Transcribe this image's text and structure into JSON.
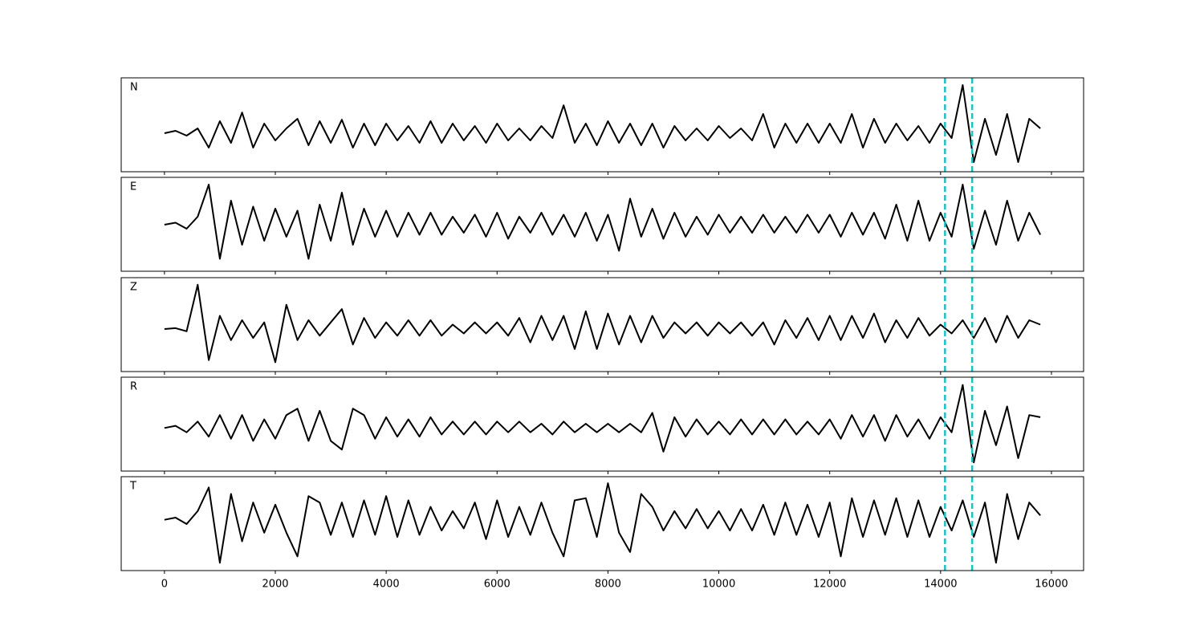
{
  "chart_data": [
    {
      "type": "line",
      "label": "N",
      "xlim": [
        -780,
        16580
      ],
      "ylim": [
        -0.8,
        1.15
      ],
      "xticks": [
        0,
        2000,
        4000,
        6000,
        8000,
        10000,
        12000,
        14000,
        16000
      ],
      "markers": [
        14080,
        14570
      ],
      "marker_color": "#17c3c3",
      "x": [
        0,
        200,
        400,
        600,
        800,
        1000,
        1200,
        1400,
        1600,
        1800,
        2000,
        2200,
        2400,
        2600,
        2800,
        3000,
        3200,
        3400,
        3600,
        3800,
        4000,
        4200,
        4400,
        4600,
        4800,
        5000,
        5200,
        5400,
        5600,
        5800,
        6000,
        6200,
        6400,
        6600,
        6800,
        7000,
        7200,
        7400,
        7600,
        7800,
        8000,
        8200,
        8400,
        8600,
        8800,
        9000,
        9200,
        9400,
        9600,
        9800,
        10000,
        10200,
        10400,
        10600,
        10800,
        11000,
        11200,
        11400,
        11600,
        11800,
        12000,
        12200,
        12400,
        12600,
        12800,
        13000,
        13200,
        13400,
        13600,
        13800,
        14000,
        14200,
        14400,
        14600,
        14800,
        15000,
        15200,
        15400,
        15600,
        15800
      ],
      "series": [
        {
          "color": "#000000",
          "values": [
            0,
            0.05,
            -0.05,
            0.1,
            -0.3,
            0.25,
            -0.2,
            0.43,
            -0.3,
            0.2,
            -0.15,
            0.1,
            0.3,
            -0.25,
            0.25,
            -0.2,
            0.28,
            -0.3,
            0.2,
            -0.25,
            0.2,
            -0.15,
            0.15,
            -0.2,
            0.25,
            -0.2,
            0.2,
            -0.15,
            0.15,
            -0.2,
            0.2,
            -0.15,
            0.1,
            -0.15,
            0.15,
            -0.1,
            0.58,
            -0.2,
            0.2,
            -0.25,
            0.25,
            -0.2,
            0.2,
            -0.25,
            0.2,
            -0.3,
            0.15,
            -0.15,
            0.1,
            -0.15,
            0.15,
            -0.1,
            0.1,
            -0.15,
            0.4,
            -0.3,
            0.2,
            -0.2,
            0.2,
            -0.2,
            0.2,
            -0.2,
            0.4,
            -0.3,
            0.3,
            -0.2,
            0.2,
            -0.15,
            0.15,
            -0.2,
            0.2,
            -0.1,
            1.0,
            -0.6,
            0.3,
            -0.45,
            0.4,
            -0.6,
            0.3,
            0.1
          ]
        }
      ]
    },
    {
      "type": "line",
      "label": "E",
      "xlim": [
        -780,
        16580
      ],
      "ylim": [
        -1.16,
        1.18
      ],
      "xticks": [
        0,
        2000,
        4000,
        6000,
        8000,
        10000,
        12000,
        14000,
        16000
      ],
      "markers": [
        14080,
        14570
      ],
      "marker_color": "#17c3c3",
      "x": [
        0,
        200,
        400,
        600,
        800,
        1000,
        1200,
        1400,
        1600,
        1800,
        2000,
        2200,
        2400,
        2600,
        2800,
        3000,
        3200,
        3400,
        3600,
        3800,
        4000,
        4200,
        4400,
        4600,
        4800,
        5000,
        5200,
        5400,
        5600,
        5800,
        6000,
        6200,
        6400,
        6600,
        6800,
        7000,
        7200,
        7400,
        7600,
        7800,
        8000,
        8200,
        8400,
        8600,
        8800,
        9000,
        9200,
        9400,
        9600,
        9800,
        10000,
        10200,
        10400,
        10600,
        10800,
        11000,
        11200,
        11400,
        11600,
        11800,
        12000,
        12200,
        12400,
        12600,
        12800,
        13000,
        13200,
        13400,
        13600,
        13800,
        14000,
        14200,
        14400,
        14600,
        14800,
        15000,
        15200,
        15400,
        15600,
        15800
      ],
      "series": [
        {
          "color": "#000000",
          "values": [
            0,
            0.05,
            -0.1,
            0.2,
            1.0,
            -0.85,
            0.6,
            -0.5,
            0.45,
            -0.4,
            0.4,
            -0.3,
            0.35,
            -0.85,
            0.5,
            -0.4,
            0.8,
            -0.5,
            0.4,
            -0.3,
            0.35,
            -0.3,
            0.3,
            -0.25,
            0.3,
            -0.25,
            0.2,
            -0.2,
            0.25,
            -0.3,
            0.3,
            -0.35,
            0.2,
            -0.2,
            0.3,
            -0.25,
            0.25,
            -0.3,
            0.3,
            -0.4,
            0.25,
            -0.65,
            0.65,
            -0.3,
            0.4,
            -0.35,
            0.3,
            -0.3,
            0.2,
            -0.25,
            0.25,
            -0.2,
            0.2,
            -0.2,
            0.25,
            -0.2,
            0.2,
            -0.2,
            0.25,
            -0.2,
            0.25,
            -0.3,
            0.3,
            -0.25,
            0.3,
            -0.35,
            0.5,
            -0.4,
            0.6,
            -0.4,
            0.3,
            -0.3,
            1.0,
            -0.6,
            0.35,
            -0.5,
            0.6,
            -0.4,
            0.3,
            -0.25
          ]
        }
      ]
    },
    {
      "type": "line",
      "label": "Z",
      "xlim": [
        -780,
        16580
      ],
      "ylim": [
        -0.96,
        1.16
      ],
      "xticks": [
        0,
        2000,
        4000,
        6000,
        8000,
        10000,
        12000,
        14000,
        16000
      ],
      "markers": [
        14080,
        14570
      ],
      "marker_color": "#17c3c3",
      "x": [
        0,
        200,
        400,
        600,
        800,
        1000,
        1200,
        1400,
        1600,
        1800,
        2000,
        2200,
        2400,
        2600,
        2800,
        3000,
        3200,
        3400,
        3600,
        3800,
        4000,
        4200,
        4400,
        4600,
        4800,
        5000,
        5200,
        5400,
        5600,
        5800,
        6000,
        6200,
        6400,
        6600,
        6800,
        7000,
        7200,
        7400,
        7600,
        7800,
        8000,
        8200,
        8400,
        8600,
        8800,
        9000,
        9200,
        9400,
        9600,
        9800,
        10000,
        10200,
        10400,
        10600,
        10800,
        11000,
        11200,
        11400,
        11600,
        11800,
        12000,
        12200,
        12400,
        12600,
        12800,
        13000,
        13200,
        13400,
        13600,
        13800,
        14000,
        14200,
        14400,
        14600,
        14800,
        15000,
        15200,
        15400,
        15600,
        15800
      ],
      "series": [
        {
          "color": "#000000",
          "values": [
            0,
            0.02,
            -0.05,
            1.0,
            -0.7,
            0.3,
            -0.25,
            0.2,
            -0.2,
            0.15,
            -0.75,
            0.55,
            -0.25,
            0.2,
            -0.15,
            0.15,
            0.45,
            -0.35,
            0.25,
            -0.2,
            0.15,
            -0.15,
            0.2,
            -0.15,
            0.2,
            -0.15,
            0.1,
            -0.1,
            0.15,
            -0.1,
            0.15,
            -0.15,
            0.25,
            -0.3,
            0.3,
            -0.25,
            0.3,
            -0.45,
            0.4,
            -0.45,
            0.35,
            -0.35,
            0.3,
            -0.3,
            0.3,
            -0.2,
            0.15,
            -0.1,
            0.15,
            -0.15,
            0.15,
            -0.1,
            0.15,
            -0.15,
            0.15,
            -0.35,
            0.2,
            -0.2,
            0.25,
            -0.25,
            0.3,
            -0.25,
            0.3,
            -0.2,
            0.35,
            -0.3,
            0.2,
            -0.2,
            0.25,
            -0.15,
            0.1,
            -0.1,
            0.2,
            -0.2,
            0.25,
            -0.3,
            0.3,
            -0.2,
            0.2,
            0.1
          ]
        }
      ]
    },
    {
      "type": "line",
      "label": "R",
      "xlim": [
        -780,
        16580
      ],
      "ylim": [
        -1.0,
        1.18
      ],
      "xticks": [
        0,
        2000,
        4000,
        6000,
        8000,
        10000,
        12000,
        14000,
        16000
      ],
      "markers": [
        14080,
        14570
      ],
      "marker_color": "#17c3c3",
      "x": [
        0,
        200,
        400,
        600,
        800,
        1000,
        1200,
        1400,
        1600,
        1800,
        2000,
        2200,
        2400,
        2600,
        2800,
        3000,
        3200,
        3400,
        3600,
        3800,
        4000,
        4200,
        4400,
        4600,
        4800,
        5000,
        5200,
        5400,
        5600,
        5800,
        6000,
        6200,
        6400,
        6600,
        6800,
        7000,
        7200,
        7400,
        7600,
        7800,
        8000,
        8200,
        8400,
        8600,
        8800,
        9000,
        9200,
        9400,
        9600,
        9800,
        10000,
        10200,
        10400,
        10600,
        10800,
        11000,
        11200,
        11400,
        11600,
        11800,
        12000,
        12200,
        12400,
        12600,
        12800,
        13000,
        13200,
        13400,
        13600,
        13800,
        14000,
        14200,
        14400,
        14600,
        14800,
        15000,
        15200,
        15400,
        15600,
        15800
      ],
      "series": [
        {
          "color": "#000000",
          "values": [
            0,
            0.05,
            -0.1,
            0.15,
            -0.2,
            0.3,
            -0.25,
            0.3,
            -0.3,
            0.2,
            -0.25,
            0.3,
            0.45,
            -0.3,
            0.4,
            -0.3,
            -0.5,
            0.45,
            0.3,
            -0.25,
            0.25,
            -0.2,
            0.2,
            -0.2,
            0.25,
            -0.15,
            0.15,
            -0.15,
            0.15,
            -0.15,
            0.15,
            -0.1,
            0.15,
            -0.1,
            0.1,
            -0.15,
            0.15,
            -0.1,
            0.1,
            -0.1,
            0.1,
            -0.1,
            0.1,
            -0.1,
            0.35,
            -0.55,
            0.25,
            -0.2,
            0.2,
            -0.15,
            0.15,
            -0.15,
            0.2,
            -0.15,
            0.2,
            -0.15,
            0.2,
            -0.15,
            0.15,
            -0.15,
            0.2,
            -0.25,
            0.3,
            -0.2,
            0.3,
            -0.3,
            0.3,
            -0.2,
            0.2,
            -0.25,
            0.25,
            -0.1,
            1.0,
            -0.8,
            0.4,
            -0.4,
            0.5,
            -0.7,
            0.3,
            0.25
          ]
        }
      ]
    },
    {
      "type": "line",
      "label": "T",
      "xlim": [
        -780,
        16580
      ],
      "ylim": [
        -1.18,
        1.0
      ],
      "xticks": [
        0,
        2000,
        4000,
        6000,
        8000,
        10000,
        12000,
        14000,
        16000
      ],
      "markers": [
        14080,
        14570
      ],
      "marker_color": "#17c3c3",
      "x": [
        0,
        200,
        400,
        600,
        800,
        1000,
        1200,
        1400,
        1600,
        1800,
        2000,
        2200,
        2400,
        2600,
        2800,
        3000,
        3200,
        3400,
        3600,
        3800,
        4000,
        4200,
        4400,
        4600,
        4800,
        5000,
        5200,
        5400,
        5600,
        5800,
        6000,
        6200,
        6400,
        6600,
        6800,
        7000,
        7200,
        7400,
        7600,
        7800,
        8000,
        8200,
        8400,
        8600,
        8800,
        9000,
        9200,
        9400,
        9600,
        9800,
        10000,
        10200,
        10400,
        10600,
        10800,
        11000,
        11200,
        11400,
        11600,
        11800,
        12000,
        12200,
        12400,
        12600,
        12800,
        13000,
        13200,
        13400,
        13600,
        13800,
        14000,
        14200,
        14400,
        14600,
        14800,
        15000,
        15200,
        15400,
        15600,
        15800
      ],
      "series": [
        {
          "color": "#000000",
          "values": [
            0,
            0.05,
            -0.1,
            0.2,
            0.75,
            -1.0,
            0.6,
            -0.5,
            0.4,
            -0.3,
            0.35,
            -0.3,
            -0.85,
            0.55,
            0.4,
            -0.35,
            0.4,
            -0.4,
            0.45,
            -0.35,
            0.55,
            -0.4,
            0.45,
            -0.35,
            0.3,
            -0.25,
            0.2,
            -0.2,
            0.4,
            -0.45,
            0.45,
            -0.4,
            0.3,
            -0.35,
            0.4,
            -0.3,
            -0.85,
            0.45,
            0.5,
            -0.4,
            0.85,
            -0.3,
            -0.75,
            0.6,
            0.3,
            -0.25,
            0.2,
            -0.2,
            0.25,
            -0.2,
            0.2,
            -0.25,
            0.25,
            -0.25,
            0.35,
            -0.35,
            0.4,
            -0.35,
            0.35,
            -0.4,
            0.4,
            -0.85,
            0.5,
            -0.4,
            0.45,
            -0.35,
            0.5,
            -0.4,
            0.45,
            -0.4,
            0.3,
            -0.25,
            0.45,
            -0.4,
            0.4,
            -1.0,
            0.6,
            -0.45,
            0.4,
            0.1
          ]
        }
      ]
    }
  ]
}
